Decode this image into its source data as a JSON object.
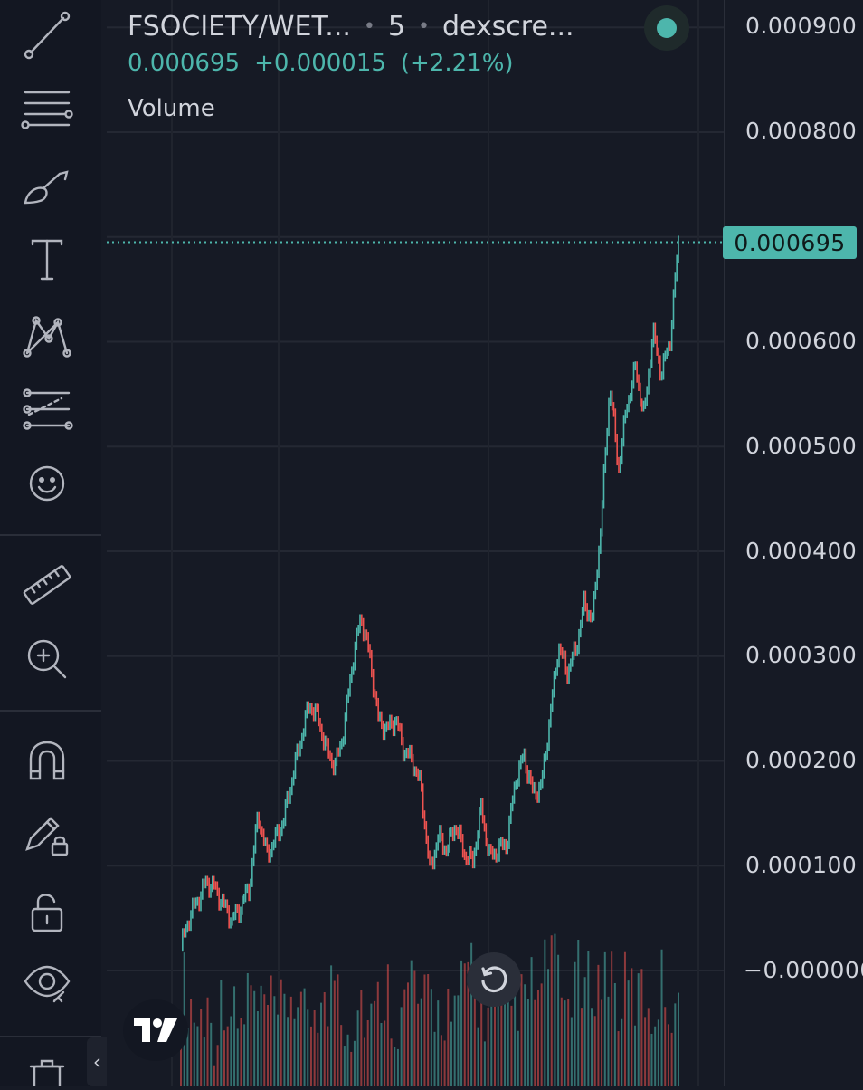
{
  "header": {
    "symbol": "FSOCIETY/WET...",
    "interval": "5",
    "source": "dexscre...",
    "last_price": "0.000695",
    "change_abs": "+0.000015",
    "change_pct": "(+2.21%)",
    "volume_label": "Volume"
  },
  "price_axis": {
    "labels": [
      "0.000900",
      "0.000800",
      "0.000600",
      "0.000500",
      "0.000400",
      "0.000300",
      "0.000200",
      "0.000100",
      "−0.000000"
    ],
    "last_price_tag": "0.000695"
  },
  "toolbar": {
    "tools": [
      "trend-line-icon",
      "fib-retracement-icon",
      "brush-icon",
      "text-icon",
      "pattern-icon",
      "forecast-icon",
      "emoji-icon",
      "ruler-icon",
      "zoom-in-icon",
      "magnet-icon",
      "lock-drawing-icon",
      "unlock-icon",
      "eye-icon",
      "trash-icon"
    ],
    "collapse": "‹"
  },
  "colors": {
    "background": "#161a25",
    "up": "#4db6ac",
    "down": "#ef5350",
    "grid": "#2a2e39",
    "text": "#d1d4dc"
  },
  "chart_data": {
    "type": "candlestick",
    "symbol": "FSOCIETY/WET...",
    "interval": "5",
    "ylim": [
      0,
      0.0009
    ],
    "last_price": 0.000695,
    "price_path": [
      2.2e-05,
      5.2e-05,
      6.8e-05,
      8.5e-05,
      7.8e-05,
      6.2e-05,
      4.8e-05,
      6.2e-05,
      8e-05,
      0.00015,
      0.00011,
      0.000125,
      0.000145,
      0.000185,
      0.000222,
      0.000255,
      0.00024,
      0.00021,
      0.000195,
      0.00023,
      0.000295,
      0.000338,
      0.0003,
      0.00024,
      0.00023,
      0.00024,
      0.00021,
      0.0002,
      0.000175,
      9.5e-05,
      0.000128,
      0.000115,
      0.00014,
      0.000112,
      0.000103,
      0.000155,
      0.000108,
      0.000115,
      0.000122,
      0.000182,
      0.000205,
      0.00017,
      0.000175,
      0.00024,
      0.00031,
      0.000285,
      0.000305,
      0.00035,
      0.000335,
      0.00043,
      0.00056,
      0.000478,
      0.00054,
      0.000575,
      0.000528,
      0.00061,
      0.00057,
      0.0006,
      0.000695
    ],
    "volume_relative": [
      0.45,
      0.3,
      0.15,
      0.25,
      0.1,
      0.35,
      0.2,
      0.12,
      0.4,
      0.18,
      0.28,
      0.15,
      0.22,
      0.38,
      0.12,
      0.25,
      0.3,
      0.18,
      0.55,
      0.2,
      0.15,
      0.32,
      0.12,
      0.26,
      0.4,
      0.18,
      0.22,
      0.5,
      0.15,
      0.35,
      0.2,
      0.28,
      0.12,
      0.45,
      0.6,
      0.18,
      0.25,
      0.3,
      0.15,
      0.35,
      0.22,
      0.4,
      0.28,
      0.7,
      0.35,
      0.25,
      0.5,
      0.3,
      0.45,
      0.38,
      0.55,
      0.25,
      0.4,
      0.3,
      0.35,
      0.2,
      0.42,
      0.28,
      0.35
    ]
  }
}
